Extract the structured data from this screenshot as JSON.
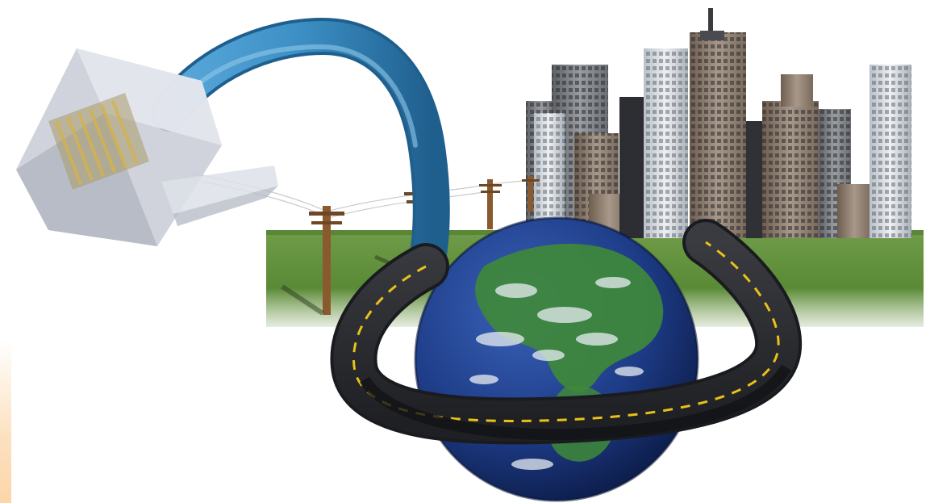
{
  "scene": {
    "colors": {
      "background": "#ffffff",
      "sky_fade": "#f4f6f6",
      "grass": "#5f8f3a",
      "grass_dark": "#3f6a25",
      "cable": "#3c8fc4",
      "cable_dark": "#1f5f8e",
      "connector": "#c9cdd6",
      "ocean": "#1d3b86",
      "land": "#3f8a38",
      "cloud": "#e8eef2",
      "road": "#2e2f33",
      "road_line": "#e8c21a",
      "pole": "#8a5a2e",
      "building_gray": "#8d8f92",
      "building_tan": "#9c8a78",
      "building_light": "#d8dde2"
    },
    "elements": [
      "ethernet-connector",
      "network-cable",
      "telephone-poles",
      "power-lines",
      "city-skyline",
      "grass-ground",
      "earth-globe",
      "ring-highway"
    ]
  }
}
